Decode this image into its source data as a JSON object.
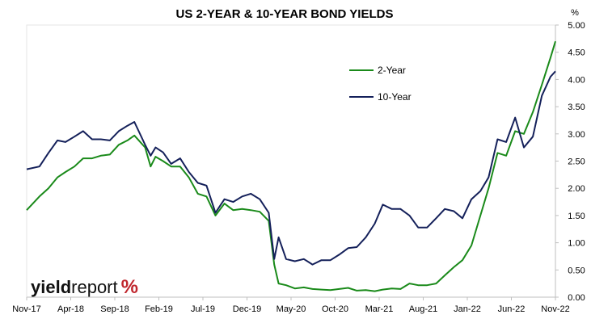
{
  "chart_data": {
    "type": "line",
    "title": "US 2-YEAR & 10-YEAR BOND YIELDS",
    "y_unit": "%",
    "ylim": [
      0,
      5
    ],
    "yticks": [
      "0.00",
      "0.50",
      "1.00",
      "1.50",
      "2.00",
      "2.50",
      "3.00",
      "3.50",
      "4.00",
      "4.50",
      "5.00"
    ],
    "x_range": [
      "2017-11",
      "2022-11"
    ],
    "xticks": [
      "Nov-17",
      "Apr-18",
      "Sep-18",
      "Feb-19",
      "Jul-19",
      "Dec-19",
      "May-20",
      "Oct-20",
      "Mar-21",
      "Aug-21",
      "Jan-22",
      "Jun-22",
      "Nov-22"
    ],
    "grid": false,
    "legend_position": "top-right",
    "watermark": {
      "bold": "yield",
      "regular": "report",
      "symbol": "%"
    },
    "series": [
      {
        "name": "2-Year",
        "color": "#1a8a1a",
        "points": [
          [
            "2017-11-01",
            1.6
          ],
          [
            "2017-12-15",
            1.85
          ],
          [
            "2018-01-15",
            2.0
          ],
          [
            "2018-02-15",
            2.2
          ],
          [
            "2018-03-15",
            2.3
          ],
          [
            "2018-04-15",
            2.4
          ],
          [
            "2018-05-15",
            2.55
          ],
          [
            "2018-06-15",
            2.55
          ],
          [
            "2018-07-15",
            2.6
          ],
          [
            "2018-08-15",
            2.62
          ],
          [
            "2018-09-15",
            2.8
          ],
          [
            "2018-10-15",
            2.88
          ],
          [
            "2018-11-08",
            2.97
          ],
          [
            "2018-12-15",
            2.75
          ],
          [
            "2019-01-03",
            2.4
          ],
          [
            "2019-01-20",
            2.58
          ],
          [
            "2019-02-15",
            2.5
          ],
          [
            "2019-03-15",
            2.4
          ],
          [
            "2019-04-15",
            2.4
          ],
          [
            "2019-05-15",
            2.2
          ],
          [
            "2019-06-15",
            1.9
          ],
          [
            "2019-07-15",
            1.85
          ],
          [
            "2019-08-15",
            1.5
          ],
          [
            "2019-09-15",
            1.72
          ],
          [
            "2019-10-15",
            1.6
          ],
          [
            "2019-11-15",
            1.62
          ],
          [
            "2019-12-15",
            1.6
          ],
          [
            "2020-01-15",
            1.57
          ],
          [
            "2020-02-15",
            1.4
          ],
          [
            "2020-03-05",
            0.6
          ],
          [
            "2020-03-20",
            0.25
          ],
          [
            "2020-04-15",
            0.22
          ],
          [
            "2020-05-15",
            0.16
          ],
          [
            "2020-06-15",
            0.18
          ],
          [
            "2020-07-15",
            0.15
          ],
          [
            "2020-08-15",
            0.14
          ],
          [
            "2020-09-15",
            0.13
          ],
          [
            "2020-10-15",
            0.15
          ],
          [
            "2020-11-15",
            0.17
          ],
          [
            "2020-12-15",
            0.12
          ],
          [
            "2021-01-15",
            0.13
          ],
          [
            "2021-02-15",
            0.11
          ],
          [
            "2021-03-15",
            0.14
          ],
          [
            "2021-04-15",
            0.16
          ],
          [
            "2021-05-15",
            0.15
          ],
          [
            "2021-06-15",
            0.25
          ],
          [
            "2021-07-15",
            0.22
          ],
          [
            "2021-08-15",
            0.22
          ],
          [
            "2021-09-15",
            0.25
          ],
          [
            "2021-10-15",
            0.4
          ],
          [
            "2021-11-15",
            0.55
          ],
          [
            "2021-12-15",
            0.68
          ],
          [
            "2022-01-15",
            0.95
          ],
          [
            "2022-02-15",
            1.5
          ],
          [
            "2022-03-15",
            2.0
          ],
          [
            "2022-04-15",
            2.65
          ],
          [
            "2022-05-15",
            2.6
          ],
          [
            "2022-06-15",
            3.05
          ],
          [
            "2022-07-15",
            3.0
          ],
          [
            "2022-08-15",
            3.4
          ],
          [
            "2022-09-15",
            3.9
          ],
          [
            "2022-10-15",
            4.4
          ],
          [
            "2022-11-01",
            4.7
          ]
        ]
      },
      {
        "name": "10-Year",
        "color": "#14205a",
        "points": [
          [
            "2017-11-01",
            2.35
          ],
          [
            "2017-12-15",
            2.4
          ],
          [
            "2018-01-15",
            2.65
          ],
          [
            "2018-02-15",
            2.88
          ],
          [
            "2018-03-15",
            2.85
          ],
          [
            "2018-04-15",
            2.95
          ],
          [
            "2018-05-15",
            3.05
          ],
          [
            "2018-06-15",
            2.9
          ],
          [
            "2018-07-15",
            2.9
          ],
          [
            "2018-08-15",
            2.88
          ],
          [
            "2018-09-15",
            3.05
          ],
          [
            "2018-10-15",
            3.15
          ],
          [
            "2018-11-08",
            3.22
          ],
          [
            "2018-12-15",
            2.8
          ],
          [
            "2019-01-03",
            2.6
          ],
          [
            "2019-01-20",
            2.75
          ],
          [
            "2019-02-15",
            2.66
          ],
          [
            "2019-03-15",
            2.45
          ],
          [
            "2019-04-15",
            2.55
          ],
          [
            "2019-05-15",
            2.3
          ],
          [
            "2019-06-15",
            2.1
          ],
          [
            "2019-07-15",
            2.05
          ],
          [
            "2019-08-15",
            1.55
          ],
          [
            "2019-09-15",
            1.8
          ],
          [
            "2019-10-15",
            1.75
          ],
          [
            "2019-11-15",
            1.85
          ],
          [
            "2019-12-15",
            1.9
          ],
          [
            "2020-01-15",
            1.8
          ],
          [
            "2020-02-15",
            1.55
          ],
          [
            "2020-03-05",
            0.7
          ],
          [
            "2020-03-20",
            1.1
          ],
          [
            "2020-04-15",
            0.7
          ],
          [
            "2020-05-15",
            0.66
          ],
          [
            "2020-06-15",
            0.7
          ],
          [
            "2020-07-15",
            0.6
          ],
          [
            "2020-08-15",
            0.68
          ],
          [
            "2020-09-15",
            0.68
          ],
          [
            "2020-10-15",
            0.78
          ],
          [
            "2020-11-15",
            0.9
          ],
          [
            "2020-12-15",
            0.92
          ],
          [
            "2021-01-15",
            1.1
          ],
          [
            "2021-02-15",
            1.35
          ],
          [
            "2021-03-15",
            1.7
          ],
          [
            "2021-04-15",
            1.62
          ],
          [
            "2021-05-15",
            1.62
          ],
          [
            "2021-06-15",
            1.5
          ],
          [
            "2021-07-15",
            1.28
          ],
          [
            "2021-08-15",
            1.28
          ],
          [
            "2021-09-15",
            1.45
          ],
          [
            "2021-10-15",
            1.62
          ],
          [
            "2021-11-15",
            1.58
          ],
          [
            "2021-12-15",
            1.45
          ],
          [
            "2022-01-15",
            1.8
          ],
          [
            "2022-02-15",
            1.95
          ],
          [
            "2022-03-15",
            2.2
          ],
          [
            "2022-04-15",
            2.9
          ],
          [
            "2022-05-15",
            2.85
          ],
          [
            "2022-06-15",
            3.3
          ],
          [
            "2022-07-15",
            2.75
          ],
          [
            "2022-08-15",
            2.95
          ],
          [
            "2022-09-15",
            3.7
          ],
          [
            "2022-10-15",
            4.05
          ],
          [
            "2022-11-01",
            4.15
          ]
        ]
      }
    ]
  }
}
